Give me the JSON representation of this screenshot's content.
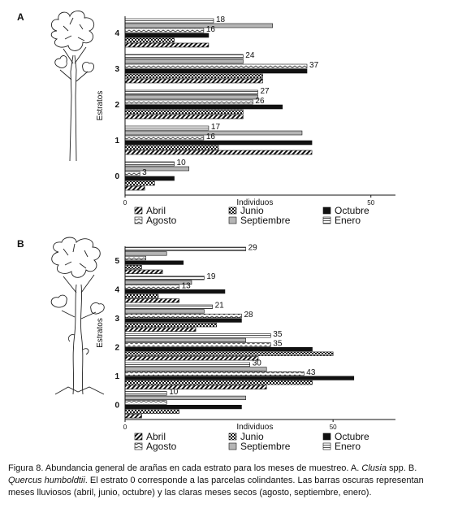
{
  "figure": {
    "caption": {
      "part1": "Figura 8. Abundancia general de arañas en cada estrato para los meses de muestreo. A. ",
      "species_a": "Clusia",
      "part2": " spp. B. ",
      "species_b": "Quercus humboldtii",
      "part3": ". El estrato 0 corresponde a las parcelas colindantes. Las barras oscuras representan meses lluviosos (abril, junio, octubre) y las claras meses secos (agosto, septiembre, enero)."
    }
  },
  "tree_icon": "tree-illustration",
  "colors": {
    "bar_stroke": "#111111",
    "dark_fill": "#111111",
    "grey_fill": "#b5b5b5"
  },
  "chart_data": [
    {
      "panel": "A",
      "type": "bar",
      "orientation": "horizontal",
      "ylabel": "Estratos",
      "xlabel": "Individuos",
      "xlim": [
        0,
        55
      ],
      "xticks": [
        0,
        50
      ],
      "categories": [
        "0",
        "1",
        "2",
        "3",
        "4"
      ],
      "series": [
        {
          "name": "Abril",
          "pattern": "diag",
          "values": [
            4,
            38,
            24,
            28,
            17
          ]
        },
        {
          "name": "Junio",
          "pattern": "check",
          "values": [
            6,
            19,
            24,
            28,
            10
          ]
        },
        {
          "name": "Octubre",
          "pattern": "solid",
          "values": [
            10,
            38,
            32,
            37,
            17
          ]
        },
        {
          "name": "Agosto",
          "pattern": "wave",
          "values": [
            3,
            16,
            26,
            37,
            16
          ]
        },
        {
          "name": "Septiembre",
          "pattern": "grey",
          "values": [
            13,
            36,
            27,
            24,
            30
          ]
        },
        {
          "name": "Enero",
          "pattern": "hstripe",
          "values": [
            10,
            17,
            27,
            24,
            18
          ]
        }
      ],
      "data_labels": [
        {
          "series": "Enero",
          "category": "4",
          "text": "18"
        },
        {
          "series": "Agosto",
          "category": "4",
          "text": "16"
        },
        {
          "series": "Enero",
          "category": "3",
          "text": "24"
        },
        {
          "series": "Agosto",
          "category": "3",
          "text": "37"
        },
        {
          "series": "Enero",
          "category": "2",
          "text": "27"
        },
        {
          "series": "Agosto",
          "category": "2",
          "text": "26"
        },
        {
          "series": "Enero",
          "category": "1",
          "text": "17"
        },
        {
          "series": "Agosto",
          "category": "1",
          "text": "16"
        },
        {
          "series": "Enero",
          "category": "0",
          "text": "10"
        },
        {
          "series": "Agosto",
          "category": "0",
          "text": "3"
        }
      ],
      "legend_order": [
        "Abril",
        "Junio",
        "Octubre",
        "Agosto",
        "Septiembre",
        "Enero"
      ]
    },
    {
      "panel": "B",
      "type": "bar",
      "orientation": "horizontal",
      "ylabel": "Estratos",
      "xlabel": "Individuos",
      "xlim": [
        0,
        65
      ],
      "xticks": [
        0,
        50
      ],
      "categories": [
        "0",
        "1",
        "2",
        "3",
        "4",
        "5"
      ],
      "series": [
        {
          "name": "Abril",
          "pattern": "diag",
          "values": [
            4,
            34,
            32,
            17,
            13,
            9
          ]
        },
        {
          "name": "Junio",
          "pattern": "check",
          "values": [
            13,
            45,
            50,
            22,
            8,
            4
          ]
        },
        {
          "name": "Octubre",
          "pattern": "solid",
          "values": [
            28,
            55,
            45,
            28,
            24,
            14
          ]
        },
        {
          "name": "Agosto",
          "pattern": "wave",
          "values": [
            10,
            43,
            35,
            28,
            13,
            5
          ]
        },
        {
          "name": "Septiembre",
          "pattern": "grey",
          "values": [
            29,
            34,
            29,
            19,
            16,
            10
          ]
        },
        {
          "name": "Enero",
          "pattern": "hstripe",
          "values": [
            10,
            30,
            35,
            21,
            19,
            29
          ]
        }
      ],
      "data_labels": [
        {
          "series": "Enero",
          "category": "5",
          "text": "29"
        },
        {
          "series": "Enero",
          "category": "4",
          "text": "19"
        },
        {
          "series": "Agosto",
          "category": "4",
          "text": "13"
        },
        {
          "series": "Enero",
          "category": "3",
          "text": "21"
        },
        {
          "series": "Agosto",
          "category": "3",
          "text": "28"
        },
        {
          "series": "Enero",
          "category": "2",
          "text": "35"
        },
        {
          "series": "Agosto",
          "category": "2",
          "text": "35"
        },
        {
          "series": "Enero",
          "category": "1",
          "text": "30"
        },
        {
          "series": "Agosto",
          "category": "1",
          "text": "43"
        },
        {
          "series": "Enero",
          "category": "0",
          "text": "10"
        }
      ],
      "legend_order": [
        "Abril",
        "Junio",
        "Octubre",
        "Agosto",
        "Septiembre",
        "Enero"
      ]
    }
  ]
}
